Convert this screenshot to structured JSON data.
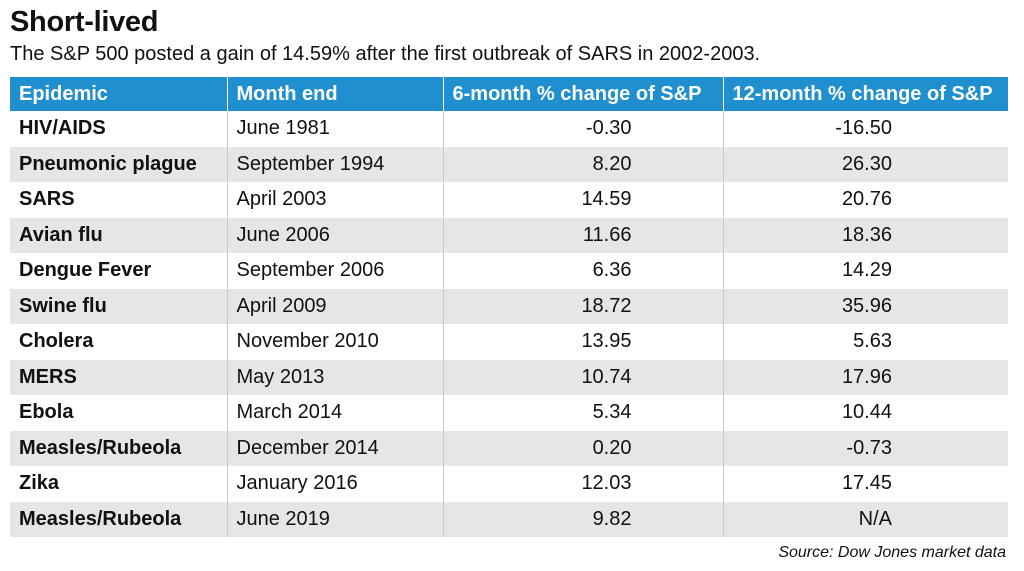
{
  "chart_data": {
    "type": "table",
    "title": "Short-lived",
    "subtitle": "The S&P 500 posted a gain of 14.59% after the first outbreak of SARS in 2002-2003.",
    "columns": [
      "Epidemic",
      "Month end",
      "6-month % change of S&P",
      "12-month % change of S&P"
    ],
    "rows": [
      {
        "epidemic": "HIV/AIDS",
        "month_end": "June 1981",
        "six_month": "-0.30",
        "twelve_month": "-16.50"
      },
      {
        "epidemic": "Pneumonic plague",
        "month_end": "September 1994",
        "six_month": "8.20",
        "twelve_month": "26.30"
      },
      {
        "epidemic": "SARS",
        "month_end": "April 2003",
        "six_month": "14.59",
        "twelve_month": "20.76"
      },
      {
        "epidemic": "Avian flu",
        "month_end": "June 2006",
        "six_month": "11.66",
        "twelve_month": "18.36"
      },
      {
        "epidemic": "Dengue Fever",
        "month_end": "September 2006",
        "six_month": "6.36",
        "twelve_month": "14.29"
      },
      {
        "epidemic": "Swine flu",
        "month_end": "April 2009",
        "six_month": "18.72",
        "twelve_month": "35.96"
      },
      {
        "epidemic": "Cholera",
        "month_end": "November 2010",
        "six_month": "13.95",
        "twelve_month": "5.63"
      },
      {
        "epidemic": "MERS",
        "month_end": "May 2013",
        "six_month": "10.74",
        "twelve_month": "17.96"
      },
      {
        "epidemic": "Ebola",
        "month_end": "March 2014",
        "six_month": "5.34",
        "twelve_month": "10.44"
      },
      {
        "epidemic": "Measles/Rubeola",
        "month_end": "December 2014",
        "six_month": "0.20",
        "twelve_month": "-0.73"
      },
      {
        "epidemic": "Zika",
        "month_end": "January 2016",
        "six_month": "12.03",
        "twelve_month": "17.45"
      },
      {
        "epidemic": "Measles/Rubeola",
        "month_end": "June 2019",
        "six_month": "9.82",
        "twelve_month": "N/A"
      }
    ],
    "source": "Source: Dow Jones market data"
  },
  "colors": {
    "header_background": "#1f8fd0",
    "header_text": "#ffffff",
    "stripe": "#e6e6e6"
  }
}
